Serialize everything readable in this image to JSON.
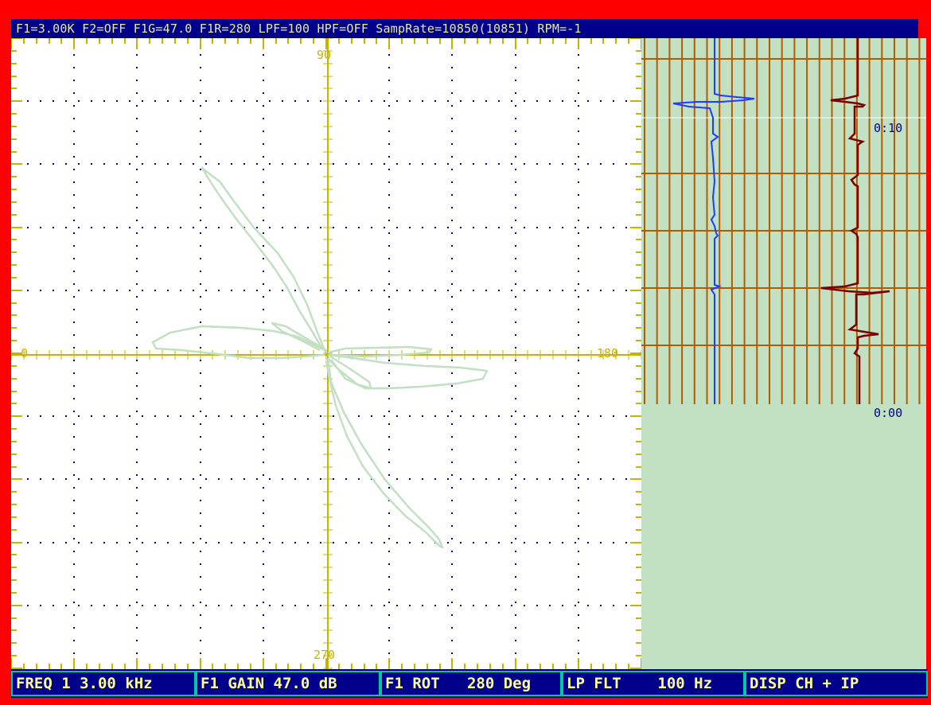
{
  "status_bar": {
    "text": "F1=3.00K F2=OFF F1G=47.0 F1R=280 LPF=100 HPF=OFF SampRate=10850(10851) RPM=-1"
  },
  "scope": {
    "angle_labels": {
      "top": "90",
      "bottom": "270",
      "left": "0",
      "right": "180"
    }
  },
  "strip_chart": {
    "time_labels": {
      "upper": "0:10",
      "lower": "0:00"
    }
  },
  "menu": [
    {
      "label": "FREQ 1 3.00 kHz"
    },
    {
      "label": "F1 GAIN 47.0 dB"
    },
    {
      "label": "F1 ROT   280 Deg"
    },
    {
      "label": "LP FLT    100 Hz"
    },
    {
      "label": "DISP CH + IP"
    }
  ],
  "colors": {
    "frame": "#ff0000",
    "bar_background": "#00008b",
    "axis": "#c8b400",
    "trace": "#c2e0c2",
    "strip_background": "#c2e0c2",
    "strip_grid": "#b45a00",
    "channel_1": "#1e3cff",
    "channel_2": "#7a0000"
  }
}
